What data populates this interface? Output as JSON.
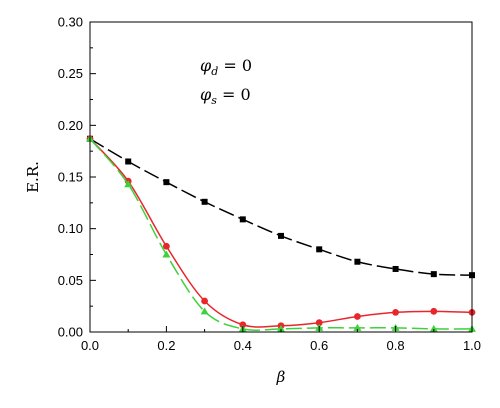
{
  "chart_data": {
    "type": "line",
    "xlabel": "β",
    "ylabel": "E.R.",
    "xlim": [
      0.0,
      1.0
    ],
    "ylim": [
      0.0,
      0.3
    ],
    "x_ticks": [
      "0.0",
      "0.2",
      "0.4",
      "0.6",
      "0.8",
      "1.0"
    ],
    "y_ticks": [
      "0.00",
      "0.05",
      "0.10",
      "0.15",
      "0.20",
      "0.25",
      "0.30"
    ],
    "grid": false,
    "annotations": [
      {
        "symbol": "φ",
        "sub": "d",
        "rest": " = 0"
      },
      {
        "symbol": "φ",
        "sub": "s",
        "rest": " = 0"
      }
    ],
    "series": [
      {
        "color": "#000000",
        "marker": "square",
        "line": "dashed",
        "x": [
          0.0,
          0.1,
          0.2,
          0.3,
          0.4,
          0.5,
          0.6,
          0.7,
          0.8,
          0.9,
          1.0
        ],
        "y": [
          0.187,
          0.165,
          0.145,
          0.126,
          0.109,
          0.093,
          0.08,
          0.068,
          0.061,
          0.056,
          0.055
        ]
      },
      {
        "color": "#e8262b",
        "marker": "circle",
        "line": "solid",
        "x": [
          0.0,
          0.1,
          0.2,
          0.3,
          0.4,
          0.5,
          0.6,
          0.7,
          0.8,
          0.9,
          1.0
        ],
        "y": [
          0.187,
          0.146,
          0.083,
          0.03,
          0.007,
          0.006,
          0.009,
          0.015,
          0.019,
          0.02,
          0.019
        ]
      },
      {
        "color": "#3cd23c",
        "marker": "triangle",
        "line": "dashed",
        "x": [
          0.0,
          0.1,
          0.2,
          0.3,
          0.4,
          0.5,
          0.6,
          0.7,
          0.8,
          0.9,
          1.0
        ],
        "y": [
          0.187,
          0.143,
          0.075,
          0.02,
          0.003,
          0.003,
          0.004,
          0.004,
          0.004,
          0.003,
          0.003
        ]
      }
    ]
  }
}
